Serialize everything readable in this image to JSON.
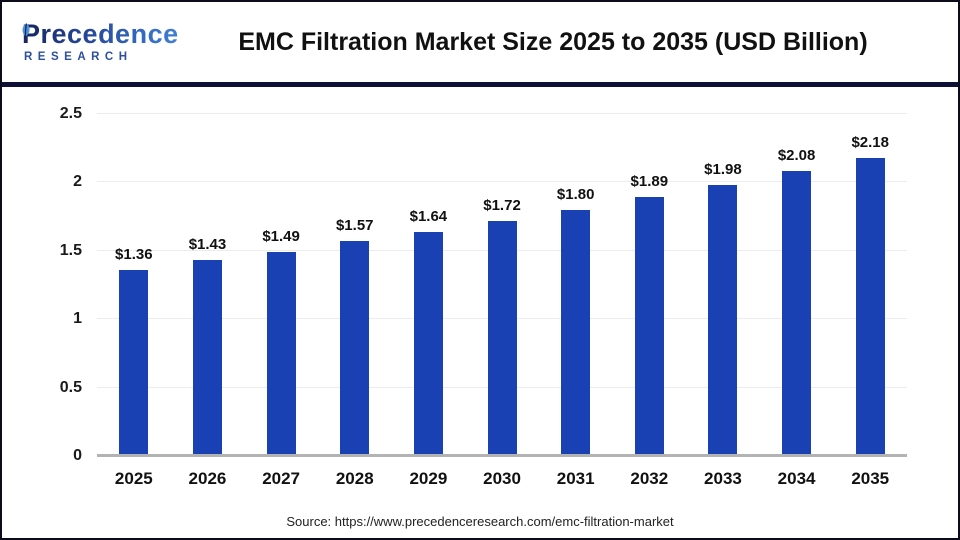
{
  "header": {
    "logo": {
      "line1": "Precedence",
      "line2": "RESEARCH"
    },
    "title": "EMC Filtration Market Size 2025 to 2035 (USD Billion)"
  },
  "chart_data": {
    "type": "bar",
    "title": "EMC Filtration Market Size 2025 to 2035 (USD Billion)",
    "categories": [
      "2025",
      "2026",
      "2027",
      "2028",
      "2029",
      "2030",
      "2031",
      "2032",
      "2033",
      "2034",
      "2035"
    ],
    "values": [
      1.36,
      1.43,
      1.49,
      1.57,
      1.64,
      1.72,
      1.8,
      1.89,
      1.98,
      2.08,
      2.18
    ],
    "value_labels": [
      "$1.36",
      "$1.43",
      "$1.49",
      "$1.57",
      "$1.64",
      "$1.72",
      "$1.80",
      "$1.89",
      "$1.98",
      "$2.08",
      "$2.18"
    ],
    "xlabel": "",
    "ylabel": "",
    "ylim": [
      0,
      2.5
    ],
    "yticks": [
      0,
      0.5,
      1,
      1.5,
      2,
      2.5
    ],
    "ytick_labels": [
      "0",
      "0.5",
      "1",
      "1.5",
      "2",
      "2.5"
    ],
    "grid": true,
    "legend": "none",
    "bar_color": "#1a41b3"
  },
  "footer": {
    "source": "Source: https://www.precedenceresearch.com/emc-filtration-market"
  },
  "colors": {
    "bar": "#1a41b3",
    "divider": "#0e1036",
    "logo_dark": "#15255f",
    "logo_light": "#3f7fd9",
    "gridline": "#ececec",
    "baseline": "#b3b3b3"
  }
}
